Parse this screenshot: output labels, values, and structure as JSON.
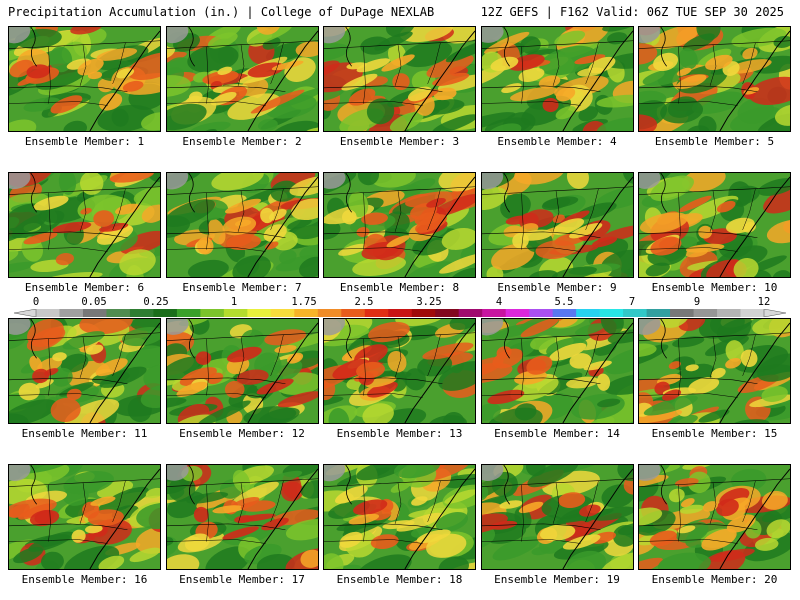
{
  "header": {
    "left_title": "Precipitation Accumulation (in.) | College of DuPage NEXLAB",
    "right_title": "12Z GEFS | F162 Valid: 06Z TUE SEP 30 2025"
  },
  "colorbar": {
    "tick_labels": [
      "0",
      "0.05",
      "0.25",
      "1",
      "1.75",
      "2.5",
      "3.25",
      "4",
      "5.5",
      "7",
      "9",
      "12"
    ],
    "colors": [
      "#c8c8c8",
      "#a0a0a0",
      "#787878",
      "#508c50",
      "#2e7d32",
      "#1b6e1b",
      "#3aa02a",
      "#7cc42c",
      "#b4dc2e",
      "#e8f03c",
      "#f8dc3c",
      "#f8b428",
      "#f08c28",
      "#e85c1c",
      "#e02e14",
      "#c81414",
      "#a00a0a",
      "#82081e",
      "#a00a6e",
      "#c814a0",
      "#dc28dc",
      "#aa50f0",
      "#5a78f0",
      "#28d2f0",
      "#28e6e6",
      "#32c8c8",
      "#32a0a0",
      "#787878",
      "#969696",
      "#b4b4b4",
      "#d2d2d2"
    ]
  },
  "panels": [
    {
      "label": "Ensemble Member: 1"
    },
    {
      "label": "Ensemble Member: 2"
    },
    {
      "label": "Ensemble Member: 3"
    },
    {
      "label": "Ensemble Member: 4"
    },
    {
      "label": "Ensemble Member: 5"
    },
    {
      "label": "Ensemble Member: 6"
    },
    {
      "label": "Ensemble Member: 7"
    },
    {
      "label": "Ensemble Member: 8"
    },
    {
      "label": "Ensemble Member: 9"
    },
    {
      "label": "Ensemble Member: 10"
    },
    {
      "label": "Ensemble Member: 11"
    },
    {
      "label": "Ensemble Member: 12"
    },
    {
      "label": "Ensemble Member: 13"
    },
    {
      "label": "Ensemble Member: 14"
    },
    {
      "label": "Ensemble Member: 15"
    },
    {
      "label": "Ensemble Member: 16"
    },
    {
      "label": "Ensemble Member: 17"
    },
    {
      "label": "Ensemble Member: 18"
    },
    {
      "label": "Ensemble Member: 19"
    },
    {
      "label": "Ensemble Member: 20"
    }
  ]
}
